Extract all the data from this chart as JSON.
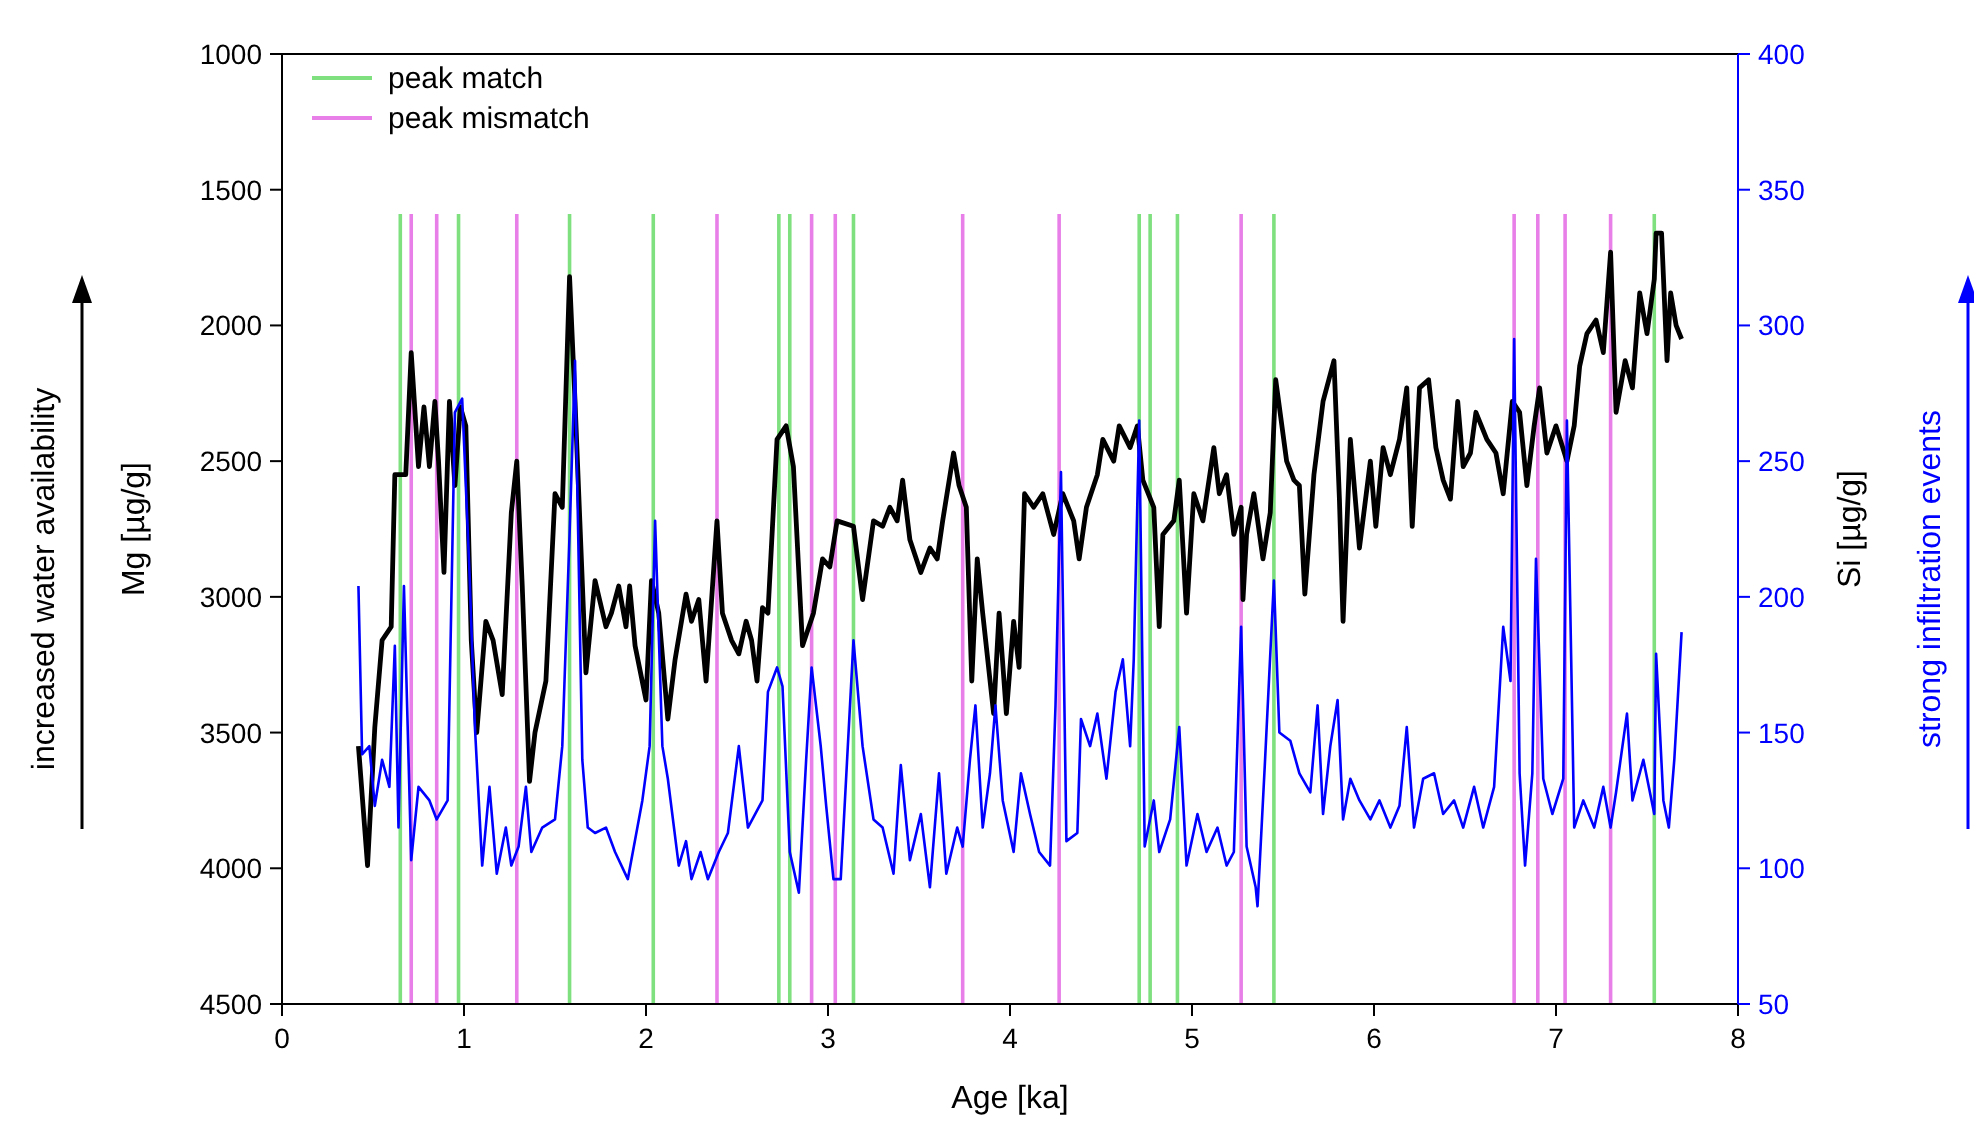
{
  "chart_data": {
    "type": "line",
    "xlabel": "Age [ka]",
    "ylabel": "Mg [µg/g]",
    "y2label": "Si [µg/g]",
    "xlim": [
      0,
      8
    ],
    "xticks": [
      0,
      1,
      2,
      3,
      4,
      5,
      6,
      7,
      8
    ],
    "ylim": [
      4500,
      1000
    ],
    "yticks": [
      1000,
      1500,
      2000,
      2500,
      3000,
      3500,
      4000,
      4500
    ],
    "y2lim": [
      50,
      400
    ],
    "y2ticks": [
      50,
      100,
      150,
      200,
      250,
      300,
      350,
      400
    ],
    "legend": "top left",
    "grid": false,
    "annotations": [
      "increased water availability",
      "strong infiltration events"
    ],
    "series": [
      {
        "color": "#000000",
        "x": [
          0.42,
          0.47,
          0.51,
          0.55,
          0.6,
          0.62,
          0.68,
          0.71,
          0.75,
          0.78,
          0.81,
          0.84,
          0.86,
          0.89,
          0.92,
          0.95,
          0.98,
          1.01,
          1.04,
          1.07,
          1.12,
          1.16,
          1.21,
          1.26,
          1.29,
          1.32,
          1.36,
          1.39,
          1.45,
          1.5,
          1.54,
          1.58,
          1.61,
          1.67,
          1.72,
          1.78,
          1.81,
          1.85,
          1.89,
          1.91,
          1.94,
          2.0,
          2.03,
          2.07,
          2.12,
          2.16,
          2.22,
          2.25,
          2.29,
          2.33,
          2.39,
          2.42,
          2.47,
          2.51,
          2.55,
          2.58,
          2.61,
          2.64,
          2.67,
          2.72,
          2.77,
          2.81,
          2.86,
          2.92,
          2.97,
          3.01,
          3.05,
          3.14,
          3.19,
          3.25,
          3.3,
          3.34,
          3.38,
          3.41,
          3.45,
          3.51,
          3.56,
          3.6,
          3.63,
          3.69,
          3.72,
          3.76,
          3.79,
          3.82,
          3.85,
          3.91,
          3.94,
          3.98,
          4.02,
          4.05,
          4.08,
          4.13,
          4.18,
          4.24,
          4.29,
          4.35,
          4.38,
          4.42,
          4.48,
          4.51,
          4.57,
          4.6,
          4.66,
          4.7,
          4.73,
          4.79,
          4.82,
          4.84,
          4.9,
          4.93,
          4.97,
          5.01,
          5.06,
          5.12,
          5.15,
          5.19,
          5.23,
          5.27,
          5.28,
          5.3,
          5.34,
          5.39,
          5.43,
          5.46,
          5.52,
          5.56,
          5.59,
          5.62,
          5.67,
          5.72,
          5.78,
          5.81,
          5.83,
          5.87,
          5.92,
          5.98,
          6.01,
          6.05,
          6.09,
          6.14,
          6.18,
          6.21,
          6.25,
          6.3,
          6.34,
          6.38,
          6.42,
          6.46,
          6.49,
          6.53,
          6.56,
          6.62,
          6.67,
          6.71,
          6.76,
          6.8,
          6.84,
          6.88,
          6.91,
          6.95,
          7.0,
          7.06,
          7.1,
          7.13,
          7.17,
          7.22,
          7.26,
          7.3,
          7.33,
          7.38,
          7.42,
          7.46,
          7.5,
          7.54,
          7.55,
          7.58,
          7.61,
          7.63,
          7.66,
          7.69
        ],
        "values": [
          3550,
          3990,
          3480,
          3160,
          3110,
          2550,
          2550,
          2100,
          2520,
          2300,
          2520,
          2280,
          2500,
          2910,
          2280,
          2590,
          2300,
          2370,
          3160,
          3500,
          3090,
          3160,
          3360,
          2690,
          2500,
          2960,
          3680,
          3500,
          3310,
          2620,
          2670,
          1820,
          2280,
          3280,
          2940,
          3110,
          3060,
          2960,
          3110,
          2960,
          3180,
          3380,
          2940,
          3060,
          3450,
          3230,
          2990,
          3090,
          3010,
          3310,
          2720,
          3060,
          3160,
          3210,
          3090,
          3160,
          3310,
          3040,
          3060,
          2420,
          2370,
          2520,
          3180,
          3060,
          2860,
          2890,
          2720,
          2740,
          3010,
          2720,
          2740,
          2670,
          2720,
          2570,
          2790,
          2910,
          2820,
          2860,
          2720,
          2470,
          2590,
          2670,
          3310,
          2860,
          3060,
          3430,
          3060,
          3430,
          3090,
          3260,
          2620,
          2670,
          2620,
          2770,
          2620,
          2720,
          2860,
          2670,
          2550,
          2420,
          2500,
          2370,
          2450,
          2370,
          2570,
          2670,
          3110,
          2770,
          2720,
          2570,
          3060,
          2620,
          2720,
          2450,
          2620,
          2550,
          2770,
          2670,
          3010,
          2770,
          2620,
          2860,
          2690,
          2200,
          2500,
          2570,
          2590,
          2990,
          2550,
          2280,
          2130,
          2640,
          3090,
          2420,
          2820,
          2500,
          2740,
          2450,
          2550,
          2420,
          2230,
          2740,
          2230,
          2200,
          2450,
          2570,
          2640,
          2280,
          2520,
          2470,
          2320,
          2420,
          2470,
          2620,
          2280,
          2320,
          2590,
          2370,
          2230,
          2470,
          2370,
          2500,
          2370,
          2150,
          2030,
          1980,
          2100,
          1730,
          2320,
          2130,
          2230,
          1880,
          2030,
          1830,
          1660,
          1660,
          2130,
          1880,
          2000,
          2050
        ]
      },
      {
        "color": "#0000ff",
        "axis": "y2",
        "x": [
          0.42,
          0.44,
          0.48,
          0.51,
          0.55,
          0.59,
          0.62,
          0.64,
          0.67,
          0.71,
          0.75,
          0.81,
          0.85,
          0.91,
          0.95,
          0.99,
          1.03,
          1.06,
          1.1,
          1.14,
          1.18,
          1.23,
          1.26,
          1.3,
          1.34,
          1.37,
          1.43,
          1.5,
          1.54,
          1.58,
          1.61,
          1.65,
          1.68,
          1.72,
          1.78,
          1.83,
          1.9,
          1.98,
          2.02,
          2.05,
          2.09,
          2.12,
          2.18,
          2.22,
          2.25,
          2.3,
          2.34,
          2.4,
          2.45,
          2.51,
          2.56,
          2.64,
          2.67,
          2.72,
          2.75,
          2.79,
          2.84,
          2.88,
          2.91,
          2.96,
          2.99,
          3.03,
          3.07,
          3.14,
          3.19,
          3.25,
          3.3,
          3.36,
          3.4,
          3.45,
          3.51,
          3.56,
          3.61,
          3.65,
          3.71,
          3.74,
          3.78,
          3.81,
          3.85,
          3.89,
          3.92,
          3.96,
          4.02,
          4.06,
          4.11,
          4.16,
          4.22,
          4.25,
          4.28,
          4.31,
          4.37,
          4.39,
          4.44,
          4.48,
          4.53,
          4.58,
          4.62,
          4.66,
          4.68,
          4.71,
          4.74,
          4.79,
          4.82,
          4.88,
          4.93,
          4.97,
          5.03,
          5.08,
          5.14,
          5.19,
          5.23,
          5.27,
          5.3,
          5.35,
          5.36,
          5.4,
          5.45,
          5.48,
          5.54,
          5.59,
          5.65,
          5.69,
          5.72,
          5.76,
          5.8,
          5.83,
          5.87,
          5.92,
          5.98,
          6.03,
          6.09,
          6.14,
          6.18,
          6.22,
          6.27,
          6.33,
          6.38,
          6.44,
          6.49,
          6.55,
          6.6,
          6.66,
          6.71,
          6.75,
          6.77,
          6.8,
          6.83,
          6.87,
          6.89,
          6.93,
          6.98,
          7.04,
          7.06,
          7.1,
          7.15,
          7.21,
          7.26,
          7.3,
          7.33,
          7.39,
          7.42,
          7.48,
          7.54,
          7.55,
          7.59,
          7.62,
          7.65,
          7.69
        ],
        "values": [
          204,
          142,
          145,
          123,
          140,
          130,
          182,
          115,
          204,
          103,
          130,
          125,
          118,
          125,
          268,
          273,
          209,
          152,
          101,
          130,
          98,
          115,
          101,
          108,
          130,
          106,
          115,
          118,
          145,
          223,
          287,
          140,
          115,
          113,
          115,
          106,
          96,
          125,
          145,
          228,
          145,
          133,
          101,
          110,
          96,
          106,
          96,
          106,
          113,
          145,
          115,
          125,
          165,
          174,
          167,
          106,
          91,
          140,
          174,
          145,
          123,
          96,
          96,
          184,
          145,
          118,
          115,
          98,
          138,
          103,
          120,
          93,
          135,
          98,
          115,
          108,
          140,
          160,
          115,
          135,
          160,
          125,
          106,
          135,
          120,
          106,
          101,
          160,
          246,
          110,
          113,
          155,
          145,
          157,
          133,
          165,
          177,
          145,
          177,
          265,
          108,
          125,
          106,
          118,
          152,
          101,
          120,
          106,
          115,
          101,
          106,
          189,
          108,
          93,
          86,
          138,
          206,
          150,
          147,
          135,
          128,
          160,
          120,
          145,
          162,
          118,
          133,
          125,
          118,
          125,
          115,
          123,
          152,
          115,
          133,
          135,
          120,
          125,
          115,
          130,
          115,
          130,
          189,
          169,
          295,
          135,
          101,
          135,
          214,
          133,
          120,
          133,
          265,
          115,
          125,
          115,
          130,
          115,
          128,
          157,
          125,
          140,
          120,
          179,
          125,
          115,
          140,
          187
        ]
      }
    ],
    "ref_lines": [
      {
        "axis": "x",
        "value": 0.65,
        "color": "#7fe07f",
        "label": "peak match"
      },
      {
        "axis": "x",
        "value": 0.97,
        "color": "#7fe07f"
      },
      {
        "axis": "x",
        "value": 1.58,
        "color": "#7fe07f"
      },
      {
        "axis": "x",
        "value": 2.04,
        "color": "#7fe07f"
      },
      {
        "axis": "x",
        "value": 2.73,
        "color": "#7fe07f"
      },
      {
        "axis": "x",
        "value": 2.79,
        "color": "#7fe07f"
      },
      {
        "axis": "x",
        "value": 3.14,
        "color": "#7fe07f"
      },
      {
        "axis": "x",
        "value": 4.71,
        "color": "#7fe07f"
      },
      {
        "axis": "x",
        "value": 4.77,
        "color": "#7fe07f"
      },
      {
        "axis": "x",
        "value": 4.92,
        "color": "#7fe07f"
      },
      {
        "axis": "x",
        "value": 5.45,
        "color": "#7fe07f"
      },
      {
        "axis": "x",
        "value": 7.54,
        "color": "#7fe07f"
      },
      {
        "axis": "x",
        "value": 0.71,
        "color": "#e87fe8",
        "label": "peak mismatch"
      },
      {
        "axis": "x",
        "value": 0.85,
        "color": "#e87fe8"
      },
      {
        "axis": "x",
        "value": 1.29,
        "color": "#e87fe8"
      },
      {
        "axis": "x",
        "value": 2.39,
        "color": "#e87fe8"
      },
      {
        "axis": "x",
        "value": 2.91,
        "color": "#e87fe8"
      },
      {
        "axis": "x",
        "value": 3.04,
        "color": "#e87fe8"
      },
      {
        "axis": "x",
        "value": 3.74,
        "color": "#e87fe8"
      },
      {
        "axis": "x",
        "value": 4.27,
        "color": "#e87fe8"
      },
      {
        "axis": "x",
        "value": 5.27,
        "color": "#e87fe8"
      },
      {
        "axis": "x",
        "value": 6.77,
        "color": "#e87fe8"
      },
      {
        "axis": "x",
        "value": 6.9,
        "color": "#e87fe8"
      },
      {
        "axis": "x",
        "value": 7.05,
        "color": "#e87fe8"
      },
      {
        "axis": "x",
        "value": 7.3,
        "color": "#e87fe8"
      }
    ]
  }
}
